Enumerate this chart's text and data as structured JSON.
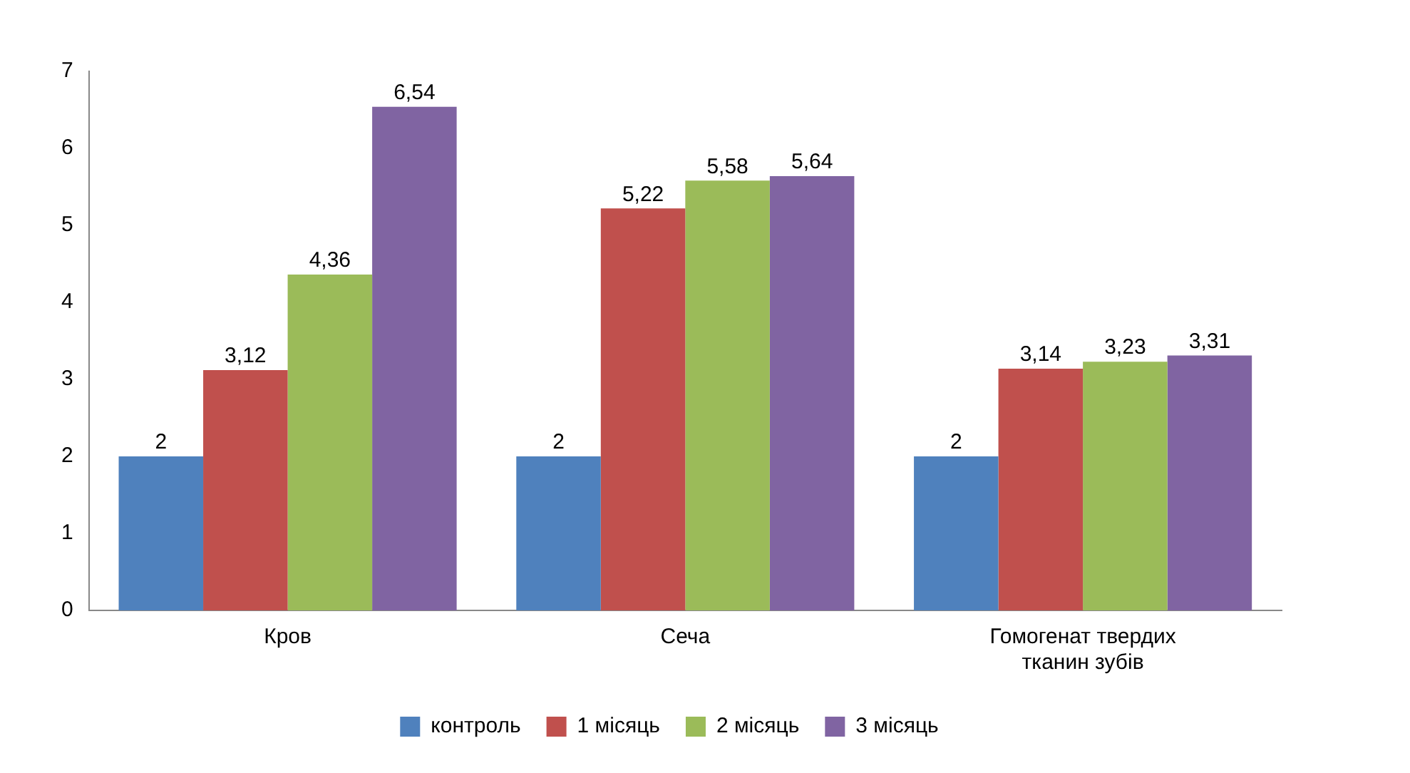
{
  "chart_data": {
    "type": "bar",
    "categories": [
      "Кров",
      "Сеча",
      "Гомогенат твердих тканин зубів"
    ],
    "series": [
      {
        "name": "контроль",
        "color": "#4f81bd",
        "values": [
          2,
          2,
          2
        ],
        "value_labels": [
          "2",
          "2",
          "2"
        ]
      },
      {
        "name": "1 місяць",
        "color": "#c0504d",
        "values": [
          3.12,
          5.22,
          3.14
        ],
        "value_labels": [
          "3,12",
          "5,22",
          "3,14"
        ]
      },
      {
        "name": "2 місяць",
        "color": "#9bbb59",
        "values": [
          4.36,
          5.58,
          3.23
        ],
        "value_labels": [
          "4,36",
          "5,58",
          "3,23"
        ]
      },
      {
        "name": "3 місяць",
        "color": "#8064a2",
        "values": [
          6.54,
          5.64,
          3.31
        ],
        "value_labels": [
          "6,54",
          "5,64",
          "3,31"
        ]
      }
    ],
    "ylim": [
      0,
      7
    ],
    "yticks": [
      0,
      1,
      2,
      3,
      4,
      5,
      6,
      7
    ],
    "grid": false,
    "legend": "bottom"
  }
}
